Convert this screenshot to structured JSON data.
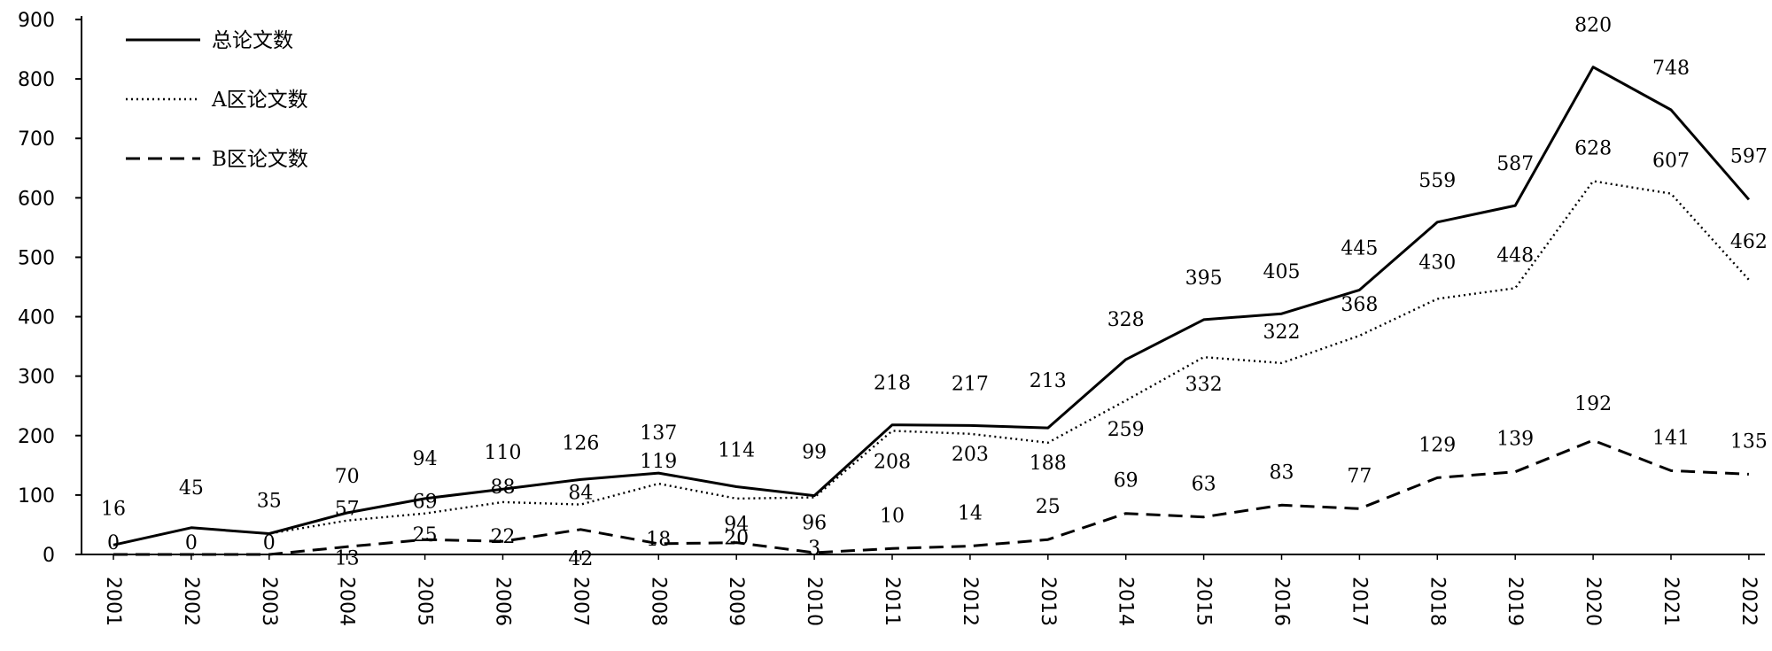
{
  "chart_data": {
    "type": "line",
    "categories": [
      "2001",
      "2002",
      "2003",
      "2004",
      "2005",
      "2006",
      "2007",
      "2008",
      "2009",
      "2010",
      "2011",
      "2012",
      "2013",
      "2014",
      "2015",
      "2016",
      "2017",
      "2018",
      "2019",
      "2020",
      "2021",
      "2022"
    ],
    "series": [
      {
        "name": "总论文数",
        "style": "solid",
        "values": [
          16,
          45,
          35,
          70,
          94,
          110,
          126,
          137,
          114,
          99,
          218,
          217,
          213,
          328,
          395,
          405,
          445,
          559,
          587,
          820,
          748,
          597
        ]
      },
      {
        "name": "A区论文数",
        "style": "dotted",
        "values": [
          16,
          45,
          35,
          57,
          69,
          88,
          84,
          119,
          94,
          96,
          208,
          203,
          188,
          259,
          332,
          322,
          368,
          430,
          448,
          628,
          607,
          462
        ]
      },
      {
        "name": "B区论文数",
        "style": "dashed",
        "values": [
          0,
          0,
          0,
          13,
          25,
          22,
          42,
          18,
          20,
          3,
          10,
          14,
          25,
          69,
          63,
          83,
          77,
          129,
          139,
          192,
          141,
          135
        ]
      }
    ],
    "y_ticks": [
      "0",
      "100",
      "200",
      "300",
      "400",
      "500",
      "600",
      "700",
      "800",
      "900"
    ],
    "ylim": [
      0,
      900
    ],
    "grid": false,
    "legend_position": "top-left",
    "data_labels": true,
    "colors": {
      "line": "#000000",
      "background": "#ffffff"
    }
  }
}
